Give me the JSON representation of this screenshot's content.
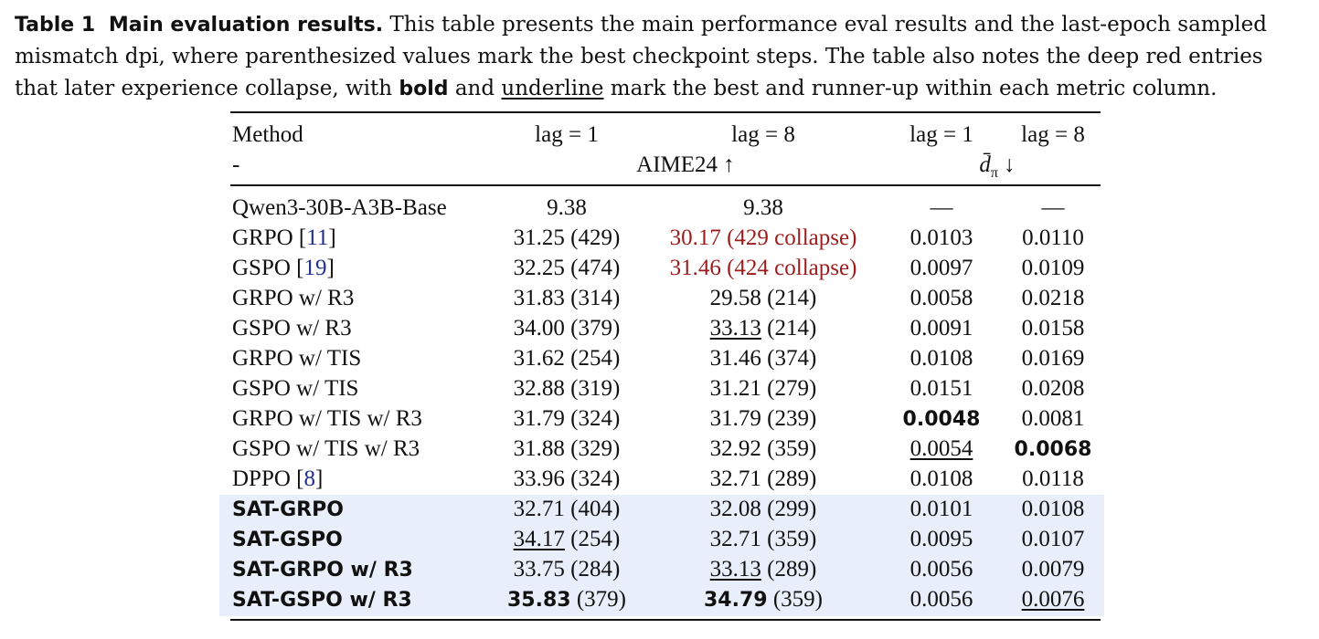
{
  "caption": {
    "label": "Table 1",
    "title": "Main evaluation results.",
    "text1": " This table presents the main performance eval results and the last-epoch sampled mismatch dpi, where parenthesized values mark the best checkpoint steps. The table also notes the deep red entries that later experience collapse, with ",
    "bold_word": "bold",
    "text2": " and ",
    "underline_word": "underline",
    "text3": " mark the best and runner-up within each metric column."
  },
  "header": {
    "method": "Method",
    "dash": "-",
    "lag1": "lag = 1",
    "lag8": "lag = 8",
    "d_lag1": "lag = 1",
    "d_lag8": "lag = 8",
    "aime": "AIME24 ↑",
    "dpi_metric": "d̄",
    "dpi_sub": "π",
    "dpi_arrow": " ↓"
  },
  "rows": [
    {
      "method": "Qwen3-30B-A3B-Base",
      "ref": "",
      "a1": "9.38",
      "a1s": "",
      "a8": "9.38",
      "a8s": "",
      "d1": "—",
      "d8": "—"
    },
    {
      "method": "GRPO [",
      "ref": "11",
      "a1": "31.25",
      "a1s": " (429)",
      "a8": "30.17 (429 collapse)",
      "a8s": "",
      "d1": "0.0103",
      "d8": "0.0110"
    },
    {
      "method": "GSPO [",
      "ref": "19",
      "a1": "32.25",
      "a1s": " (474)",
      "a8": "31.46 (424 collapse)",
      "a8s": "",
      "d1": "0.0097",
      "d8": "0.0109"
    },
    {
      "method": "GRPO w/ R3",
      "ref": "",
      "a1": "31.83",
      "a1s": " (314)",
      "a8": "29.58",
      "a8s": " (214)",
      "d1": "0.0058",
      "d8": "0.0218"
    },
    {
      "method": "GSPO w/ R3",
      "ref": "",
      "a1": "34.00",
      "a1s": " (379)",
      "a8": "33.13",
      "a8s": " (214)",
      "d1": "0.0091",
      "d8": "0.0158"
    },
    {
      "method": "GRPO w/ TIS",
      "ref": "",
      "a1": "31.62",
      "a1s": " (254)",
      "a8": "31.46",
      "a8s": " (374)",
      "d1": "0.0108",
      "d8": "0.0169"
    },
    {
      "method": "GSPO w/ TIS",
      "ref": "",
      "a1": "32.88",
      "a1s": " (319)",
      "a8": "31.21",
      "a8s": " (279)",
      "d1": "0.0151",
      "d8": "0.0208"
    },
    {
      "method": "GRPO w/ TIS w/ R3",
      "ref": "",
      "a1": "31.79",
      "a1s": " (324)",
      "a8": "31.79",
      "a8s": " (239)",
      "d1": "0.0048",
      "d8": "0.0081"
    },
    {
      "method": "GSPO w/ TIS w/ R3",
      "ref": "",
      "a1": "31.88",
      "a1s": " (329)",
      "a8": "32.92",
      "a8s": " (359)",
      "d1": "0.0054",
      "d8": "0.0068"
    },
    {
      "method": "DPPO [",
      "ref": "8",
      "a1": "33.96",
      "a1s": " (324)",
      "a8": "32.71",
      "a8s": " (289)",
      "d1": "0.0108",
      "d8": "0.0118"
    },
    {
      "method": "SAT-GRPO",
      "ref": "",
      "a1": "32.71",
      "a1s": " (404)",
      "a8": "32.08",
      "a8s": " (299)",
      "d1": "0.0101",
      "d8": "0.0108"
    },
    {
      "method": "SAT-GSPO",
      "ref": "",
      "a1": "34.17",
      "a1s": " (254)",
      "a8": "32.71",
      "a8s": " (359)",
      "d1": "0.0095",
      "d8": "0.0107"
    },
    {
      "method": "SAT-GRPO w/ R3",
      "ref": "",
      "a1": "33.75",
      "a1s": " (284)",
      "a8": "33.13",
      "a8s": " (289)",
      "d1": "0.0056",
      "d8": "0.0079"
    },
    {
      "method": "SAT-GSPO w/ R3",
      "ref": "",
      "a1": "35.83",
      "a1s": " (379)",
      "a8": "34.79",
      "a8s": " (359)",
      "d1": "0.0056",
      "d8": "0.0076"
    }
  ],
  "closing_bracket": "]",
  "colors": {
    "collapse_red": "#9b1c1c",
    "citation_blue": "#1f2f8f",
    "highlight_bg": "#e9effa"
  }
}
